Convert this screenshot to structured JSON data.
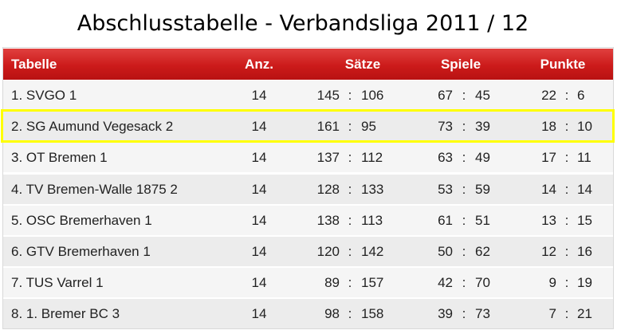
{
  "title": "Abschlusstabelle - Verbandsliga 2011 / 12",
  "header": {
    "team": "Tabelle",
    "anz": "Anz.",
    "saetze": "Sätze",
    "spiele": "Spiele",
    "punkte": "Punkte"
  },
  "colors": {
    "header_red": "#cc1b1a",
    "highlight_yellow": "#ffff00"
  },
  "highlighted_row": 2,
  "rows": [
    {
      "team": "1. SVGO 1",
      "anz": "14",
      "saetze_won": "145",
      "saetze_lost": "106",
      "spiele_won": "67",
      "spiele_lost": "45",
      "punkte_plus": "22",
      "punkte_minus": "6"
    },
    {
      "team": "2. SG Aumund Vegesack 2",
      "anz": "14",
      "saetze_won": "161",
      "saetze_lost": "95",
      "spiele_won": "73",
      "spiele_lost": "39",
      "punkte_plus": "18",
      "punkte_minus": "10"
    },
    {
      "team": "3. OT Bremen 1",
      "anz": "14",
      "saetze_won": "137",
      "saetze_lost": "112",
      "spiele_won": "63",
      "spiele_lost": "49",
      "punkte_plus": "17",
      "punkte_minus": "11"
    },
    {
      "team": "4. TV Bremen-Walle 1875 2",
      "anz": "14",
      "saetze_won": "128",
      "saetze_lost": "133",
      "spiele_won": "53",
      "spiele_lost": "59",
      "punkte_plus": "14",
      "punkte_minus": "14"
    },
    {
      "team": "5. OSC Bremerhaven 1",
      "anz": "14",
      "saetze_won": "138",
      "saetze_lost": "113",
      "spiele_won": "61",
      "spiele_lost": "51",
      "punkte_plus": "13",
      "punkte_minus": "15"
    },
    {
      "team": "6. GTV Bremerhaven 1",
      "anz": "14",
      "saetze_won": "120",
      "saetze_lost": "142",
      "spiele_won": "50",
      "spiele_lost": "62",
      "punkte_plus": "12",
      "punkte_minus": "16"
    },
    {
      "team": "7. TUS Varrel 1",
      "anz": "14",
      "saetze_won": "89",
      "saetze_lost": "157",
      "spiele_won": "42",
      "spiele_lost": "70",
      "punkte_plus": "9",
      "punkte_minus": "19"
    },
    {
      "team": "8. 1. Bremer BC 3",
      "anz": "14",
      "saetze_won": "98",
      "saetze_lost": "158",
      "spiele_won": "39",
      "spiele_lost": "73",
      "punkte_plus": "7",
      "punkte_minus": "21"
    }
  ]
}
